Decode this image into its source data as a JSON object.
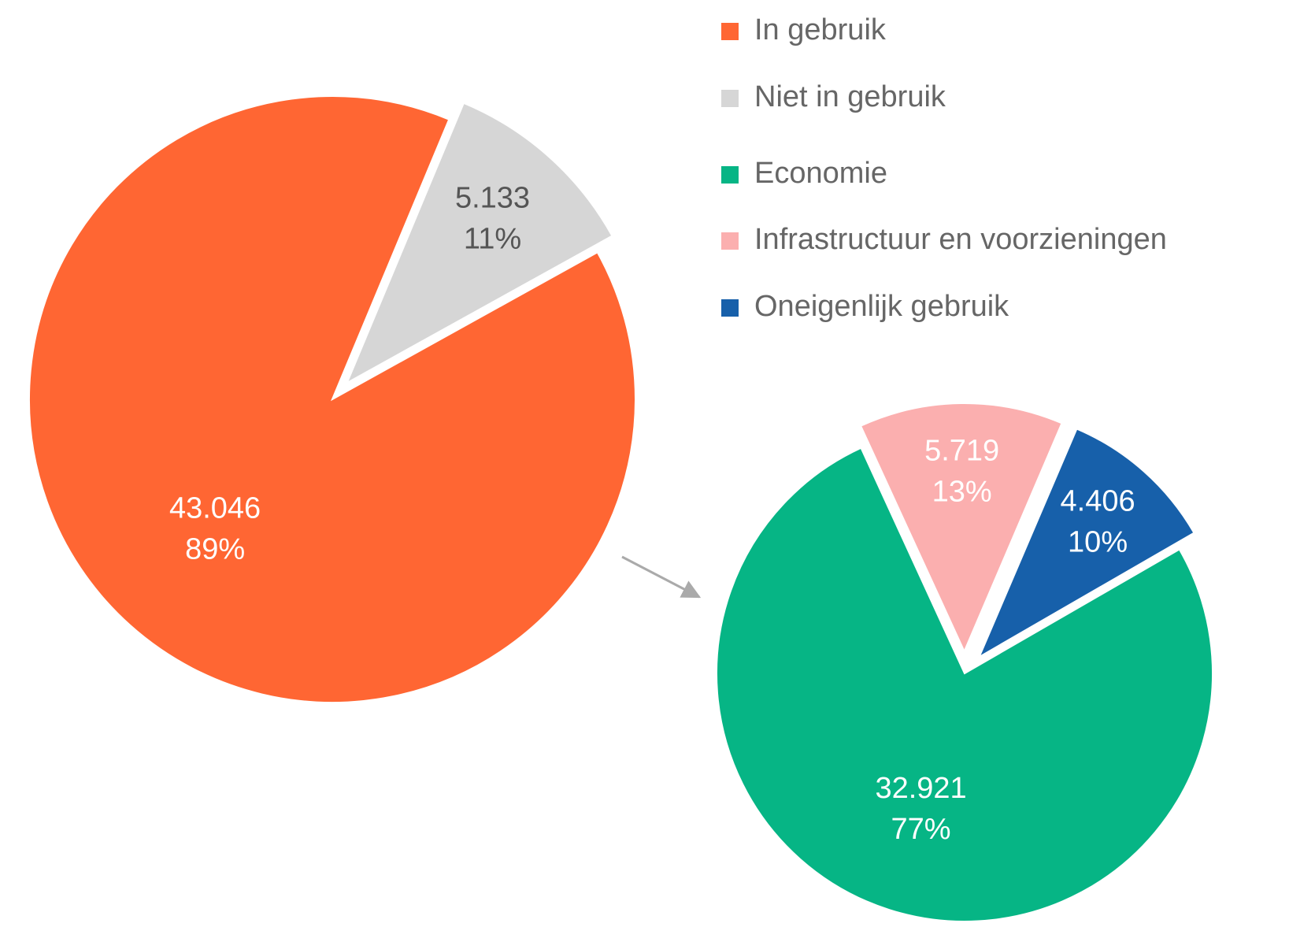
{
  "chart_data": [
    {
      "type": "pie",
      "categories": [
        "In gebruik",
        "Niet in gebruik"
      ],
      "values": [
        43046,
        5133
      ],
      "value_labels": [
        "43.046",
        "5.133"
      ],
      "percent_labels": [
        "89%",
        "11%"
      ],
      "colors": [
        "#ff6633",
        "#d6d6d6"
      ],
      "label_colors": [
        "#ffffff",
        "#555555"
      ],
      "exploded": [
        false,
        true
      ]
    },
    {
      "type": "pie",
      "categories": [
        "Economie",
        "Infrastructuur en voorzieningen",
        "Oneigenlijk gebruik"
      ],
      "values": [
        32921,
        5719,
        4406
      ],
      "value_labels": [
        "32.921",
        "5.719",
        "4.406"
      ],
      "percent_labels": [
        "77%",
        "13%",
        "10%"
      ],
      "colors": [
        "#06b585",
        "#fbafaf",
        "#1760aa"
      ],
      "label_colors": [
        "#ffffff",
        "#ffffff",
        "#ffffff"
      ],
      "exploded": [
        false,
        true,
        true
      ]
    }
  ]
}
